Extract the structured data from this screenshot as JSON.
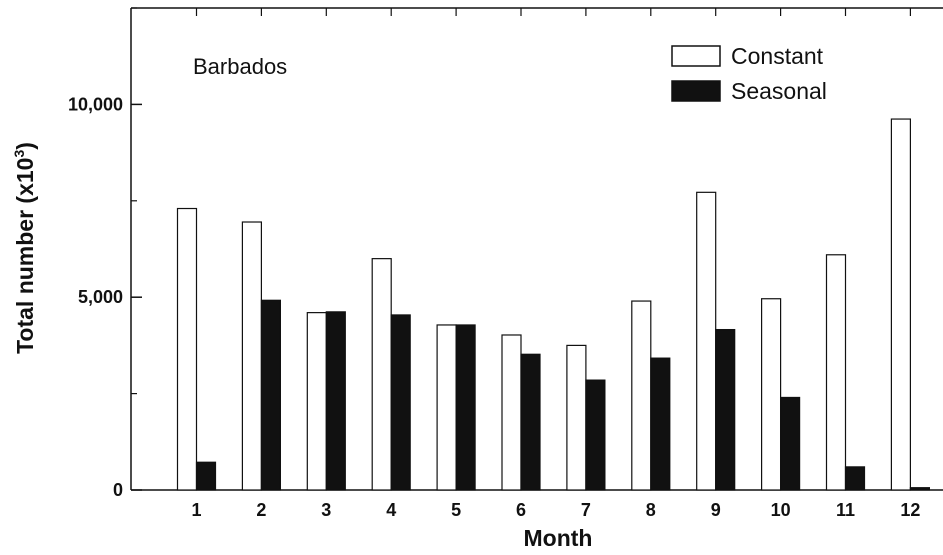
{
  "chart_data": {
    "type": "bar",
    "annotation": "Barbados",
    "xlabel": "Month",
    "ylabel_main": "Total number (x10",
    "ylabel_sup": "3",
    "ylabel_close": ")",
    "categories": [
      "1",
      "2",
      "3",
      "4",
      "5",
      "6",
      "7",
      "8",
      "9",
      "10",
      "11",
      "12"
    ],
    "series": [
      {
        "name": "Constant",
        "color": "#ffffff",
        "values": [
          7300,
          6950,
          4600,
          6000,
          4280,
          4020,
          3750,
          4900,
          7720,
          4960,
          6100,
          9620
        ]
      },
      {
        "name": "Seasonal",
        "color": "#111111",
        "values": [
          720,
          4920,
          4620,
          4540,
          4280,
          3520,
          2850,
          3420,
          4160,
          2400,
          600,
          60
        ]
      }
    ],
    "yticks": [
      0,
      5000,
      10000
    ],
    "ytick_labels": [
      "0",
      "5,000",
      "10,000"
    ],
    "ylim": [
      0,
      12500
    ],
    "legend_position": "top-right",
    "grid": false
  }
}
